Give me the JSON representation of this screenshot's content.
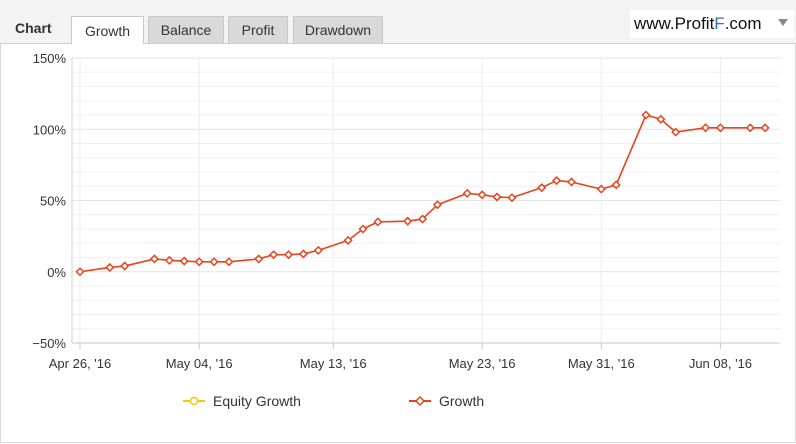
{
  "header": {
    "title": "Chart",
    "tabs": [
      {
        "label": "Growth",
        "active": true
      },
      {
        "label": "Balance",
        "active": false
      },
      {
        "label": "Profit",
        "active": false
      },
      {
        "label": "Drawdown",
        "active": false
      }
    ],
    "brand_prefix": "www.Profit",
    "brand_accent": "F",
    "brand_suffix": ".com"
  },
  "chart_data": {
    "type": "line",
    "title": "",
    "xlabel": "",
    "ylabel": "",
    "ylim": [
      -50,
      150
    ],
    "yticks": [
      -50,
      0,
      50,
      100,
      150
    ],
    "ytick_labels": [
      "−50%",
      "0%",
      "50%",
      "100%",
      "150%"
    ],
    "xlim": [
      "2016-04-26",
      "2016-06-12"
    ],
    "xticks": [
      "2016-04-26",
      "2016-05-04",
      "2016-05-13",
      "2016-05-23",
      "2016-05-31",
      "2016-06-08"
    ],
    "xtick_labels": [
      "Apr 26, '16",
      "May 04, '16",
      "May 13, '16",
      "May 23, '16",
      "May 31, '16",
      "Jun 08, '16"
    ],
    "grid": true,
    "legend_position": "bottom",
    "series": [
      {
        "name": "Equity Growth",
        "color": "#f2c80f",
        "marker": "open-circle",
        "x": [],
        "y": []
      },
      {
        "name": "Growth",
        "color": "#e8431c",
        "marker": "diamond",
        "x": [
          "2016-04-26",
          "2016-04-28",
          "2016-04-29",
          "2016-05-01",
          "2016-05-02",
          "2016-05-03",
          "2016-05-04",
          "2016-05-05",
          "2016-05-06",
          "2016-05-08",
          "2016-05-09",
          "2016-05-10",
          "2016-05-11",
          "2016-05-12",
          "2016-05-14",
          "2016-05-15",
          "2016-05-16",
          "2016-05-18",
          "2016-05-19",
          "2016-05-20",
          "2016-05-22",
          "2016-05-23",
          "2016-05-24",
          "2016-05-25",
          "2016-05-27",
          "2016-05-28",
          "2016-05-29",
          "2016-05-31",
          "2016-06-01",
          "2016-06-03",
          "2016-06-04",
          "2016-06-05",
          "2016-06-07",
          "2016-06-08",
          "2016-06-10",
          "2016-06-11"
        ],
        "y": [
          0,
          3,
          4,
          9,
          8,
          7.5,
          7,
          7,
          7,
          9,
          12,
          12,
          12.5,
          15,
          22,
          30,
          35,
          35.5,
          37,
          47,
          55,
          54,
          52.5,
          52,
          59,
          64,
          63,
          58,
          61,
          110,
          107,
          98,
          101,
          101,
          101,
          101
        ]
      }
    ]
  }
}
